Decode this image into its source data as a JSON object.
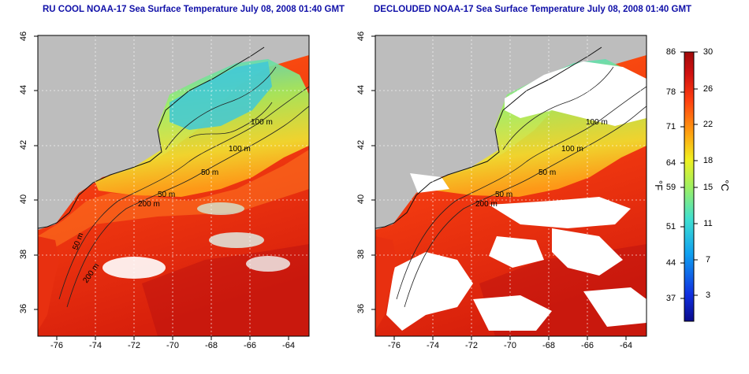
{
  "panels": [
    {
      "title": "RU COOL NOAA-17 Sea Surface Temperature July 08, 2008 01:40 GMT",
      "variant": "raw",
      "x_ticks": [
        "-76",
        "-74",
        "-72",
        "-70",
        "-68",
        "-66",
        "-64"
      ],
      "y_ticks": [
        "36",
        "38",
        "40",
        "42",
        "44",
        "46"
      ],
      "contour_labels": [
        "100 m",
        "100 m",
        "50 m",
        "50 m",
        "200 m",
        "50 m",
        "200 m"
      ]
    },
    {
      "title": "DECLOUDED NOAA-17 Sea Surface Temperature July 08, 2008 01:40 GMT",
      "variant": "declouded",
      "x_ticks": [
        "-76",
        "-74",
        "-72",
        "-70",
        "-68",
        "-66",
        "-64"
      ],
      "y_ticks": [
        "36",
        "38",
        "40",
        "42",
        "44",
        "46"
      ],
      "contour_labels": [
        "100 m",
        "100 m",
        "50 m",
        "50 m",
        "200 m"
      ]
    }
  ],
  "map_extent": {
    "lon_min": -77,
    "lon_max": -63,
    "lat_min": 35,
    "lat_max": 46
  },
  "colorbar": {
    "fahrenheit_labels": [
      "86",
      "78",
      "71",
      "64",
      "59",
      "51",
      "44",
      "37"
    ],
    "celsius_labels": [
      "30",
      "26",
      "22",
      "18",
      "15",
      "11",
      "7",
      "3"
    ],
    "unit_f": "°F",
    "unit_c": "°C",
    "range_c": [
      0,
      30
    ],
    "colors": [
      "#0a0a8c",
      "#1030e0",
      "#10a0f0",
      "#40e0d0",
      "#a0f060",
      "#f0f020",
      "#ffa010",
      "#ff4010",
      "#d01010",
      "#a00a0a"
    ]
  },
  "colors": {
    "land": "#bdbdbd",
    "cloud_white": "#ffffff",
    "title_blue": "#1010a8"
  }
}
